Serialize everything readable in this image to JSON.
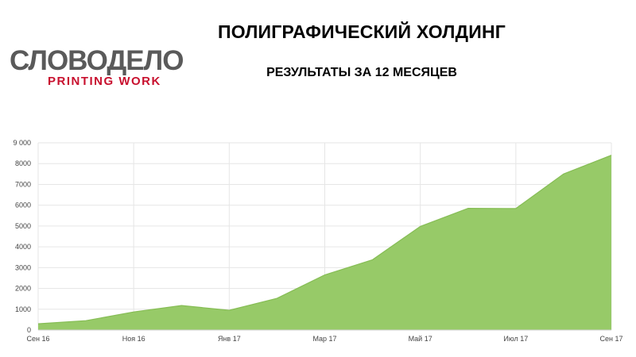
{
  "header": {
    "title": "ПОЛИГРАФИЧЕСКИЙ ХОЛДИНГ",
    "subtitle": "РЕЗУЛЬТАТЫ ЗА 12 МЕСЯЦЕВ"
  },
  "logo": {
    "main_text": "СЛОВОДЕЛО",
    "sub_text": "PRINTING WORK",
    "main_color": "#5a5a5a",
    "accent_color": "#c8102e"
  },
  "chart_data": {
    "type": "area",
    "title": "",
    "xlabel": "",
    "ylabel": "",
    "ylim": [
      0,
      9000
    ],
    "y_ticks": [
      0,
      1000,
      2000,
      3000,
      4000,
      5000,
      6000,
      7000,
      8000,
      9000
    ],
    "y_tick_labels": [
      "0",
      "1000",
      "2000",
      "3000",
      "4000",
      "5000",
      "6000",
      "7000",
      "8000",
      "9 000"
    ],
    "x_labels": [
      "Сен 16",
      "Ноя 16",
      "Янв 17",
      "Мар 17",
      "Май 17",
      "Июл 17",
      "Сен 17"
    ],
    "grid": true,
    "legend": "none",
    "color": "#95c965",
    "series": [
      {
        "values": [
          300,
          450,
          870,
          1180,
          950,
          1520,
          2650,
          3380,
          4980,
          5850,
          5840,
          7500,
          8400
        ]
      }
    ]
  }
}
